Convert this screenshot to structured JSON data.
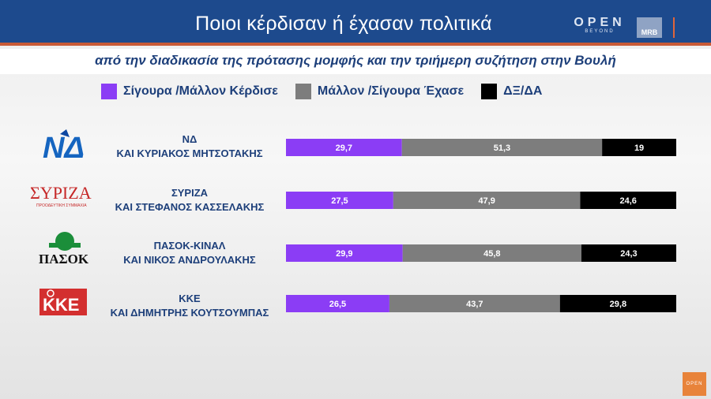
{
  "header": {
    "title": "Ποιοι κέρδισαν ή έχασαν πολιτικά",
    "brand_main": "OPEN",
    "brand_sub": "BEYOND",
    "mrb": "MRB"
  },
  "subtitle": "από την διαδικασία της πρότασης μομφής και την τριήμερη συζήτηση στην Βουλή",
  "logos": {
    "nd": "ΝΔ",
    "syriza": "ΣΥΡΙΖΑ",
    "syriza_small": "ΠΡΟΟΔΕΥΤΙΚΗ ΣΥΜΜΑΧΙΑ",
    "pasok": "ΠΑΣΟΚ",
    "kke": "ΚΚΕ"
  },
  "colors": {
    "won": "#8b3df5",
    "lost": "#7d7d7d",
    "dk": "#000000"
  },
  "chart_data": {
    "type": "bar",
    "stacked": true,
    "orientation": "horizontal",
    "title": "Ποιοι κέρδισαν ή έχασαν πολιτικά",
    "subtitle": "από την διαδικασία της πρότασης μομφής και την τριήμερη συζήτηση στην Βουλή",
    "legend_position": "top",
    "categories": [
      [
        "ΝΔ",
        "ΚΑΙ ΚΥΡΙΑΚΟΣ ΜΗΤΣΟΤΑΚΗΣ"
      ],
      [
        "ΣΥΡΙΖΑ",
        "ΚΑΙ ΣΤΕΦΑΝΟΣ ΚΑΣΣΕΛΑΚΗΣ"
      ],
      [
        "ΠΑΣΟΚ-ΚΙΝΑΛ",
        "ΚΑΙ ΝΙΚΟΣ ΑΝΔΡΟΥΛΑΚΗΣ"
      ],
      [
        "ΚΚΕ",
        "ΚΑΙ ΔΗΜΗΤΡΗΣ ΚΟΥΤΣΟΥΜΠΑΣ"
      ]
    ],
    "series": [
      {
        "name": "Σίγουρα /Μάλλον Κέρδισε",
        "values": [
          29.7,
          27.5,
          29.9,
          26.5
        ],
        "labels": [
          "29,7",
          "27,5",
          "29,9",
          "26,5"
        ]
      },
      {
        "name": "Μάλλον /Σίγουρα Έχασε",
        "values": [
          51.3,
          47.9,
          45.8,
          43.7
        ],
        "labels": [
          "51,3",
          "47,9",
          "45,8",
          "43,7"
        ]
      },
      {
        "name": "ΔΞ/ΔΑ",
        "values": [
          19,
          24.6,
          24.3,
          29.8
        ],
        "labels": [
          "19",
          "24,6",
          "24,3",
          "29,8"
        ]
      }
    ]
  }
}
